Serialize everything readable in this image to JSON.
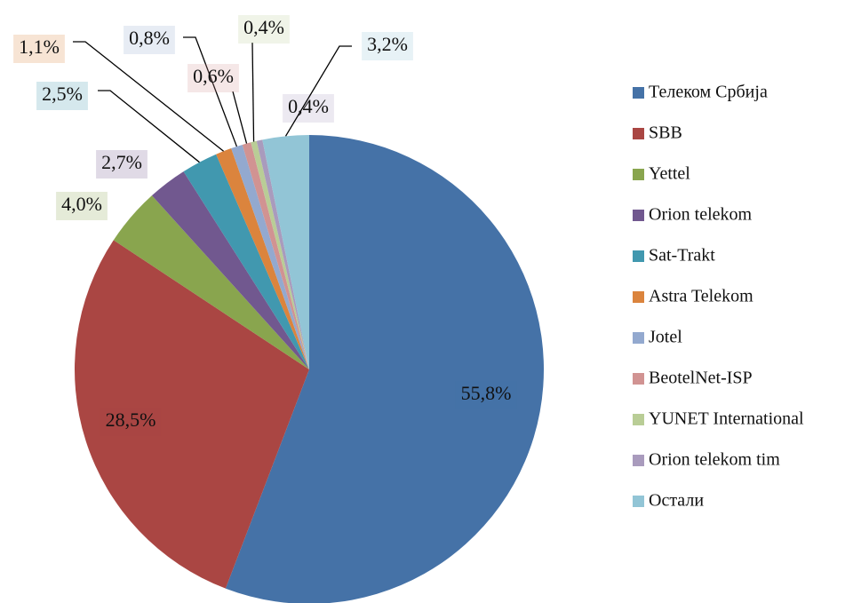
{
  "chart_data": {
    "type": "pie",
    "categories": [
      "Телеком Србија",
      "SBB",
      "Yettel",
      "Orion telekom",
      "Sat-Trakt",
      "Astra Telekom",
      "Jotel",
      "BeotelNet-ISP",
      "YUNET International",
      "Orion telekom tim",
      "Остали"
    ],
    "values": [
      55.8,
      28.5,
      4.0,
      2.7,
      2.5,
      1.1,
      0.8,
      0.6,
      0.4,
      0.4,
      3.2
    ],
    "value_labels": [
      "55,8%",
      "28,5%",
      "4,0%",
      "2,7%",
      "2,5%",
      "1,1%",
      "0,8%",
      "0,6%",
      "0,4%",
      "0,4%",
      "3,2%"
    ],
    "colors": [
      "#4572A7",
      "#AA4643",
      "#89A54E",
      "#71588F",
      "#4198AF",
      "#DB843D",
      "#93A9CF",
      "#D19392",
      "#B9CD96",
      "#A99BBD",
      "#92C5D6"
    ],
    "legend": "right"
  }
}
